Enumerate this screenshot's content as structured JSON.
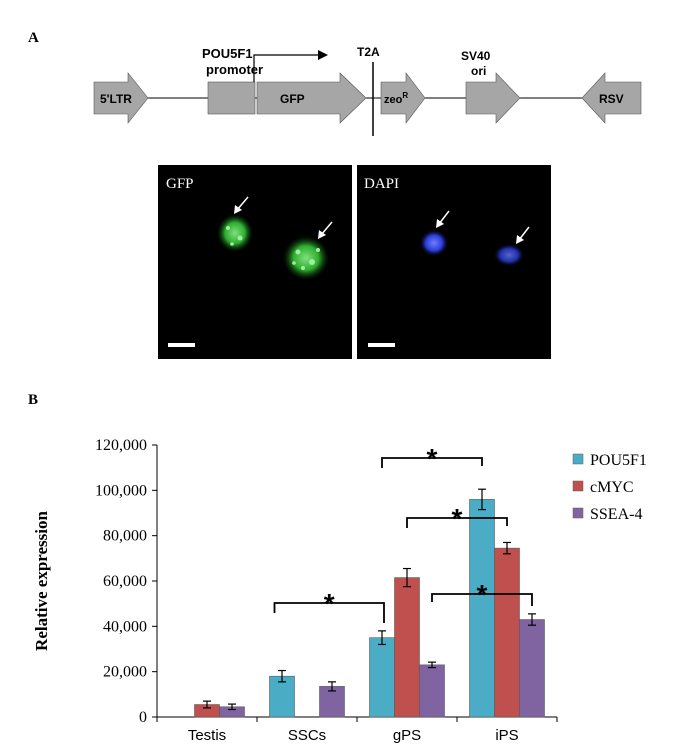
{
  "panel_a": {
    "label": "A",
    "construct": {
      "ltr_label": "5'LTR",
      "promoter_label_line1": "POU5F1",
      "promoter_label_line2": "promoter",
      "gfp_label": "GFP",
      "t2a_label": "T2A",
      "zeo_label": "zeo",
      "zeo_superscript": "R",
      "sv40_label_line1": "SV40",
      "sv40_label_line2": "ori",
      "rsv_label": "RSV",
      "element_color": "#a6a6a6"
    },
    "micrographs": [
      {
        "label": "GFP",
        "stain_color": "#2fae2f"
      },
      {
        "label": "DAPI",
        "stain_color": "#2a3dd8"
      }
    ]
  },
  "panel_b": {
    "label": "B",
    "significance_marker": "*"
  },
  "chart_data": {
    "type": "bar",
    "categories": [
      "Testis",
      "SSCs",
      "gPS",
      "iPS"
    ],
    "ylabel": "Relative expression",
    "xlabel": "",
    "ylim": [
      0,
      120000
    ],
    "yticks": [
      0,
      20000,
      40000,
      60000,
      80000,
      100000,
      120000
    ],
    "ytick_labels": [
      "0",
      "20,000",
      "40,000",
      "60,000",
      "80,000",
      "100,000",
      "120,000"
    ],
    "legend_position": "top-right",
    "grid": false,
    "series": [
      {
        "name": "POU5F1",
        "color": "#4bacc6",
        "values": [
          0,
          18000,
          35000,
          96000
        ],
        "errors": [
          0,
          2500,
          3000,
          4500
        ]
      },
      {
        "name": "cMYC",
        "color": "#c0504d",
        "values": [
          5500,
          0,
          61500,
          74500
        ],
        "errors": [
          1500,
          0,
          4000,
          2500
        ]
      },
      {
        "name": "SSEA-4",
        "color": "#8064a2",
        "values": [
          4500,
          13500,
          23000,
          43000
        ],
        "errors": [
          1200,
          2000,
          1200,
          2500
        ]
      }
    ],
    "significance": [
      {
        "from": "SSCs",
        "to": "gPS",
        "label": "*"
      },
      {
        "from": "gPS",
        "to": "iPS",
        "series": "POU5F1",
        "label": "*"
      },
      {
        "from": "gPS",
        "to": "iPS",
        "series": "cMYC",
        "label": "*"
      },
      {
        "from": "gPS",
        "to": "iPS",
        "series": "SSEA-4",
        "label": "*"
      }
    ]
  }
}
